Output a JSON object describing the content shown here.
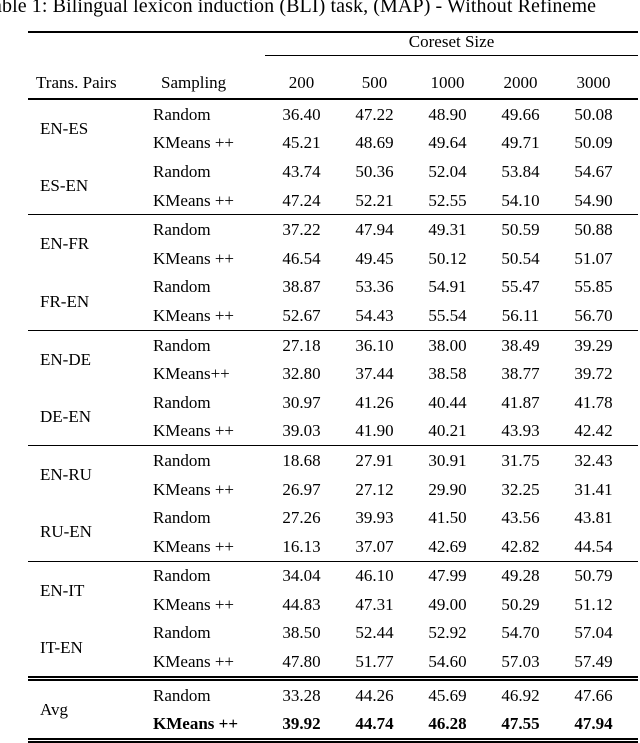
{
  "caption": "able 1: Bilingual lexicon induction (BLI) task, (MAP) - Without Refineme",
  "table": {
    "span_header": "Coreset Size",
    "col_pair": "Trans. Pairs",
    "col_sampling": "Sampling",
    "sizes": [
      "200",
      "500",
      "1000",
      "2000",
      "3000"
    ],
    "sections": [
      {
        "entries": [
          {
            "pair": "EN-ES",
            "rows": [
              {
                "sampling": "Random",
                "values": [
                  "36.40",
                  "47.22",
                  "48.90",
                  "49.66",
                  "50.08"
                ],
                "bold": false
              },
              {
                "sampling": "KMeans ++",
                "values": [
                  "45.21",
                  "48.69",
                  "49.64",
                  "49.71",
                  "50.09"
                ],
                "bold": false
              }
            ]
          },
          {
            "pair": "ES-EN",
            "rows": [
              {
                "sampling": "Random",
                "values": [
                  "43.74",
                  "50.36",
                  "52.04",
                  "53.84",
                  "54.67"
                ],
                "bold": false
              },
              {
                "sampling": "KMeans ++",
                "values": [
                  "47.24",
                  "52.21",
                  "52.55",
                  "54.10",
                  "54.90"
                ],
                "bold": false
              }
            ]
          }
        ]
      },
      {
        "entries": [
          {
            "pair": "EN-FR",
            "rows": [
              {
                "sampling": "Random",
                "values": [
                  "37.22",
                  "47.94",
                  "49.31",
                  "50.59",
                  "50.88"
                ],
                "bold": false
              },
              {
                "sampling": "KMeans ++",
                "values": [
                  "46.54",
                  "49.45",
                  "50.12",
                  "50.54",
                  "51.07"
                ],
                "bold": false
              }
            ]
          },
          {
            "pair": "FR-EN",
            "rows": [
              {
                "sampling": "Random",
                "values": [
                  "38.87",
                  "53.36",
                  "54.91",
                  "55.47",
                  "55.85"
                ],
                "bold": false
              },
              {
                "sampling": "KMeans ++",
                "values": [
                  "52.67",
                  "54.43",
                  "55.54",
                  "56.11",
                  "56.70"
                ],
                "bold": false
              }
            ]
          }
        ]
      },
      {
        "entries": [
          {
            "pair": "EN-DE",
            "rows": [
              {
                "sampling": "Random",
                "values": [
                  "27.18",
                  "36.10",
                  "38.00",
                  "38.49",
                  "39.29"
                ],
                "bold": false
              },
              {
                "sampling": "KMeans++",
                "values": [
                  "32.80",
                  "37.44",
                  "38.58",
                  "38.77",
                  "39.72"
                ],
                "bold": false
              }
            ]
          },
          {
            "pair": "DE-EN",
            "rows": [
              {
                "sampling": "Random",
                "values": [
                  "30.97",
                  "41.26",
                  "40.44",
                  "41.87",
                  "41.78"
                ],
                "bold": false
              },
              {
                "sampling": "KMeans ++",
                "values": [
                  "39.03",
                  "41.90",
                  "40.21",
                  "43.93",
                  "42.42"
                ],
                "bold": false
              }
            ]
          }
        ]
      },
      {
        "entries": [
          {
            "pair": "EN-RU",
            "rows": [
              {
                "sampling": "Random",
                "values": [
                  "18.68",
                  "27.91",
                  "30.91",
                  "31.75",
                  "32.43"
                ],
                "bold": false
              },
              {
                "sampling": "KMeans ++",
                "values": [
                  "26.97",
                  "27.12",
                  "29.90",
                  "32.25",
                  "31.41"
                ],
                "bold": false
              }
            ]
          },
          {
            "pair": "RU-EN",
            "rows": [
              {
                "sampling": "Random",
                "values": [
                  "27.26",
                  "39.93",
                  "41.50",
                  "43.56",
                  "43.81"
                ],
                "bold": false
              },
              {
                "sampling": "KMeans ++",
                "values": [
                  "16.13",
                  "37.07",
                  "42.69",
                  "42.82",
                  "44.54"
                ],
                "bold": false
              }
            ]
          }
        ]
      },
      {
        "entries": [
          {
            "pair": "EN-IT",
            "rows": [
              {
                "sampling": "Random",
                "values": [
                  "34.04",
                  "46.10",
                  "47.99",
                  "49.28",
                  "50.79"
                ],
                "bold": false
              },
              {
                "sampling": "KMeans ++",
                "values": [
                  "44.83",
                  "47.31",
                  "49.00",
                  "50.29",
                  "51.12"
                ],
                "bold": false
              }
            ]
          },
          {
            "pair": "IT-EN",
            "rows": [
              {
                "sampling": "Random",
                "values": [
                  "38.50",
                  "52.44",
                  "52.92",
                  "54.70",
                  "57.04"
                ],
                "bold": false
              },
              {
                "sampling": "KMeans ++",
                "values": [
                  "47.80",
                  "51.77",
                  "54.60",
                  "57.03",
                  "57.49"
                ],
                "bold": false
              }
            ]
          }
        ]
      },
      {
        "avg": true,
        "entries": [
          {
            "pair": "Avg",
            "rows": [
              {
                "sampling": "Random",
                "values": [
                  "33.28",
                  "44.26",
                  "45.69",
                  "46.92",
                  "47.66"
                ],
                "bold": false
              },
              {
                "sampling": "KMeans ++",
                "values": [
                  "39.92",
                  "44.74",
                  "46.28",
                  "47.55",
                  "47.94"
                ],
                "bold": true
              }
            ]
          }
        ]
      }
    ]
  }
}
